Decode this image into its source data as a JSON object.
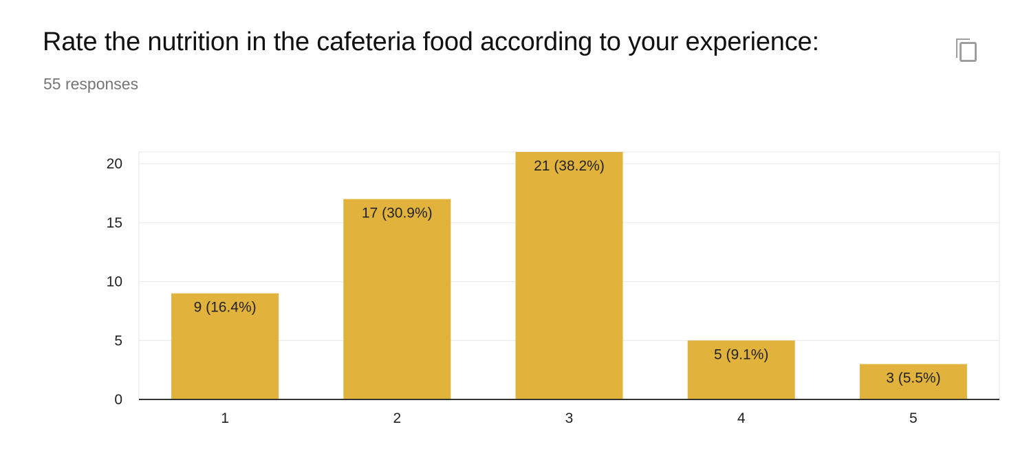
{
  "question": {
    "title": "Rate the nutrition in the cafeteria food according to your experience:",
    "responses": "55 responses"
  },
  "copy_icon": "copy-icon",
  "colors": {
    "bar": "#E1B33D",
    "gridline": "#E6E6E6",
    "axis": "#333333",
    "title": "#111111",
    "subtitle": "#757575"
  },
  "chart_data": {
    "type": "bar",
    "categories": [
      "1",
      "2",
      "3",
      "4",
      "5"
    ],
    "values": [
      9,
      17,
      21,
      5,
      3
    ],
    "data_labels": [
      "9 (16.4%)",
      "17 (30.9%)",
      "21 (38.2%)",
      "5 (9.1%)",
      "3 (5.5%)"
    ],
    "y_ticks": [
      0,
      5,
      10,
      15,
      20
    ],
    "ylim": [
      0,
      21
    ],
    "grid": true,
    "legend": "none",
    "title": "",
    "xlabel": "",
    "ylabel": ""
  }
}
